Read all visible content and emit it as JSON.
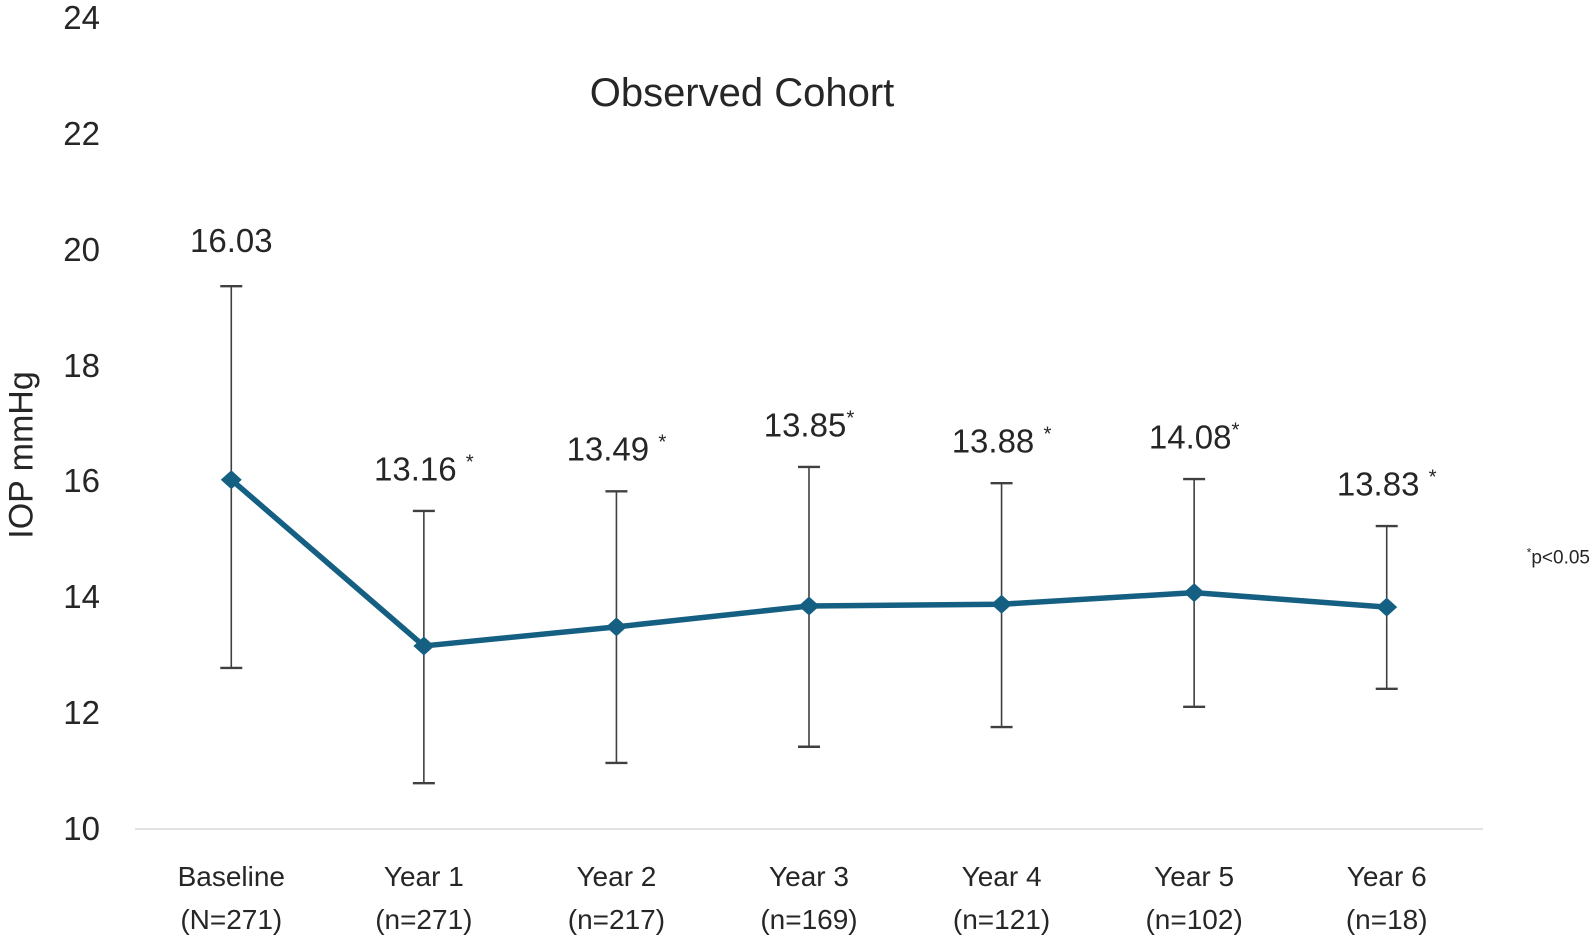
{
  "chart": {
    "title": "Observed Cohort",
    "y_axis_title": "IOP mmHg",
    "annotation": "*p<0.05"
  },
  "colors": {
    "line": "#156082",
    "marker": "#156082",
    "error_bar": "#404040",
    "axis_line": "#d9d9d9",
    "text": "#262626"
  },
  "chart_data": {
    "type": "line",
    "title": "Observed Cohort",
    "xlabel": "",
    "ylabel": "IOP mmHg",
    "ylim": [
      10,
      24
    ],
    "y_ticks": [
      10,
      12,
      14,
      16,
      18,
      20,
      22,
      24
    ],
    "grid": false,
    "legend": false,
    "annotation": "*p<0.05",
    "categories": [
      "Baseline",
      "Year 1",
      "Year 2",
      "Year 3",
      "Year 4",
      "Year 5",
      "Year 6"
    ],
    "category_sublabels": [
      "(N=271)",
      "(n=271)",
      "(n=217)",
      "(n=169)",
      "(n=121)",
      "(n=102)",
      "(n=18)"
    ],
    "series": [
      {
        "marker": "diamond",
        "values": [
          16.03,
          13.16,
          13.49,
          13.85,
          13.88,
          14.08,
          13.83
        ],
        "data_labels": [
          "16.03",
          "13.16 *",
          "13.49 *",
          "13.85*",
          "13.88 *",
          "14.08*",
          "13.83 *"
        ],
        "error_bar_upper": [
          19.37,
          15.49,
          15.83,
          16.25,
          15.97,
          16.04,
          15.23
        ],
        "error_bar_lower": [
          12.78,
          10.79,
          11.14,
          11.42,
          11.76,
          12.11,
          12.42
        ]
      }
    ]
  }
}
